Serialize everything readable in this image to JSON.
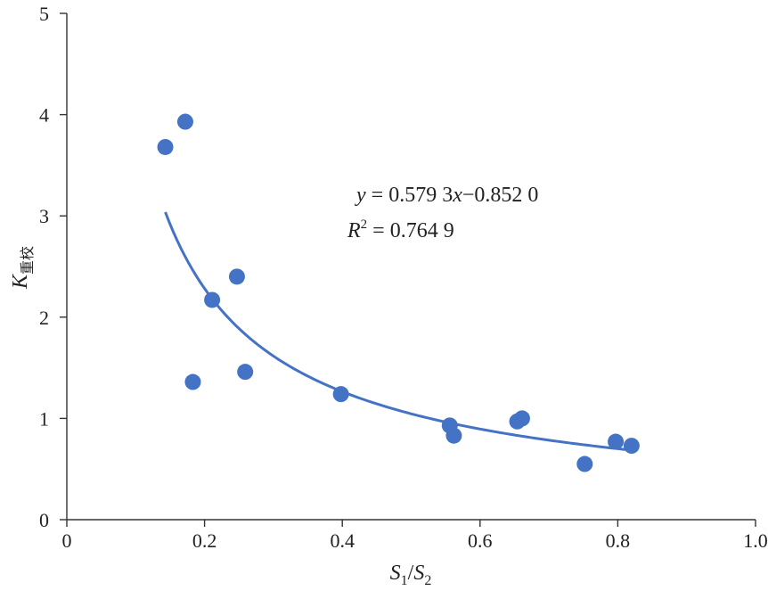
{
  "chart_data": {
    "type": "scatter",
    "title": "",
    "xlabel": {
      "main": "S",
      "sub1": "1",
      "slash": "/",
      "main2": "S",
      "sub2": "2"
    },
    "ylabel": {
      "main": "K",
      "sub": "重校"
    },
    "xlim": [
      0,
      1.0
    ],
    "ylim": [
      0,
      5
    ],
    "x_ticks": [
      0,
      0.2,
      0.4,
      0.6,
      0.8,
      1.0
    ],
    "x_tick_labels": [
      "0",
      "0.2",
      "0.4",
      "0.6",
      "0.8",
      "1.0"
    ],
    "y_ticks": [
      0,
      1,
      2,
      3,
      4,
      5
    ],
    "y_tick_labels": [
      "0",
      "1",
      "2",
      "3",
      "4",
      "5"
    ],
    "grid": false,
    "legend": "none",
    "series": [
      {
        "points": [
          {
            "x": 0.143,
            "y": 3.68
          },
          {
            "x": 0.172,
            "y": 3.93
          },
          {
            "x": 0.183,
            "y": 1.36
          },
          {
            "x": 0.211,
            "y": 2.17
          },
          {
            "x": 0.247,
            "y": 2.4
          },
          {
            "x": 0.259,
            "y": 1.46
          },
          {
            "x": 0.398,
            "y": 1.24
          },
          {
            "x": 0.556,
            "y": 0.93
          },
          {
            "x": 0.562,
            "y": 0.83
          },
          {
            "x": 0.654,
            "y": 0.97
          },
          {
            "x": 0.661,
            "y": 1.0
          },
          {
            "x": 0.752,
            "y": 0.55
          },
          {
            "x": 0.797,
            "y": 0.77
          },
          {
            "x": 0.82,
            "y": 0.73
          }
        ]
      }
    ],
    "trendline": {
      "type": "power",
      "coefficient": 0.5793,
      "exponent": -0.852,
      "x_range": [
        0.143,
        0.82
      ],
      "equation": {
        "lhs": "y",
        "eq": " = 0.579 3",
        "var": "x",
        "exp": "−0.852 0"
      },
      "r2": {
        "lhs": "R",
        "sup": "2",
        "rhs": " = 0.764 9"
      }
    },
    "colors": {
      "marker": "#4472C4",
      "trendline": "#4472C4",
      "axis": "#333333",
      "text": "#222222"
    }
  }
}
